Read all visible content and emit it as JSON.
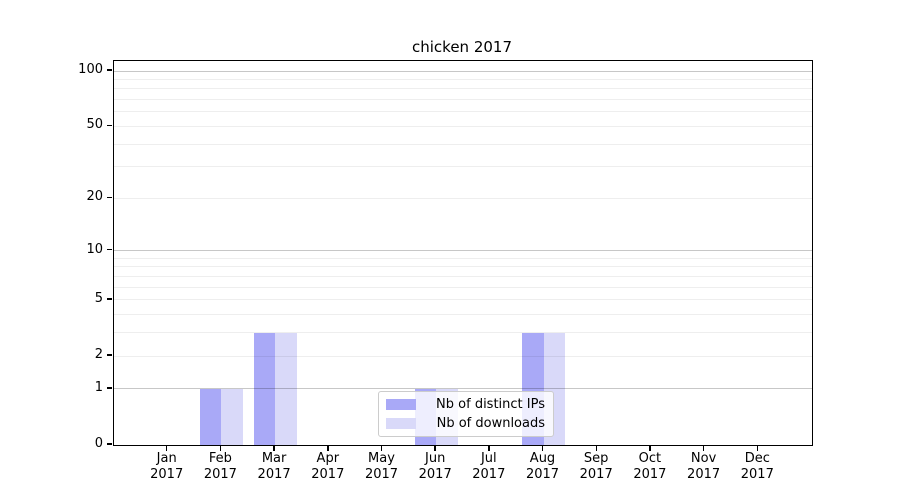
{
  "chart_data": {
    "type": "bar",
    "title": "chicken 2017",
    "x_year": "2017",
    "categories": [
      "Jan",
      "Feb",
      "Mar",
      "Apr",
      "May",
      "Jun",
      "Jul",
      "Aug",
      "Sep",
      "Oct",
      "Nov",
      "Dec"
    ],
    "series": [
      {
        "name": "Nb of distinct IPs",
        "color": "#a9a9f7",
        "values": [
          0,
          1,
          3,
          0,
          0,
          1,
          0,
          3,
          0,
          0,
          0,
          0
        ]
      },
      {
        "name": "Nb of downloads",
        "color": "#d9d9f9",
        "values": [
          0,
          1,
          3,
          0,
          0,
          1,
          0,
          3,
          0,
          0,
          0,
          0
        ]
      }
    ],
    "yscale": "log1p",
    "ylim": [
      0,
      113
    ],
    "yticks_labeled": [
      0,
      1,
      2,
      5,
      10,
      20,
      50,
      100
    ],
    "gridlines_major": [
      1,
      10,
      100
    ],
    "gridlines_minor": [
      2,
      3,
      4,
      5,
      6,
      7,
      8,
      9,
      20,
      30,
      40,
      50,
      60,
      70,
      80,
      90
    ],
    "legend_position": "lower center",
    "grid": "on",
    "colors": {
      "axis": "#000000",
      "major_grid": "#c9c9c9",
      "minor_grid": "#f0f0f0",
      "legend_border": "#cccccc"
    }
  }
}
